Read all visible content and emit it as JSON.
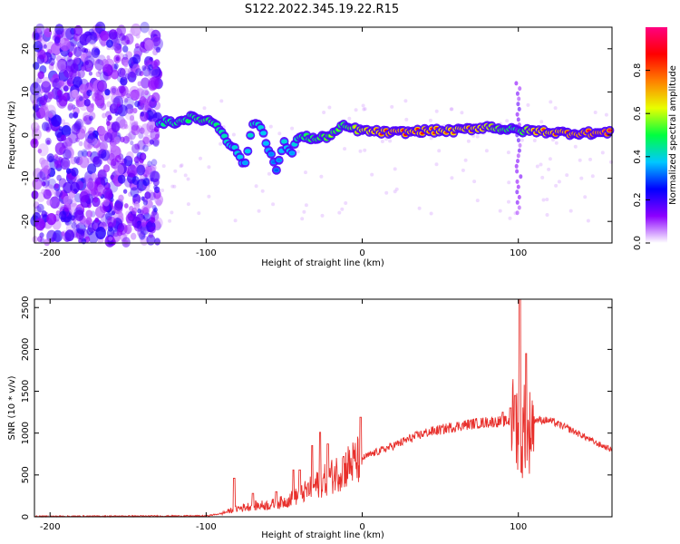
{
  "title": "S122.2022.345.19.22.R15",
  "chart_data": [
    {
      "type": "heatmap",
      "xlabel": "Height of straight line (km)",
      "ylabel": "Frequency (Hz)",
      "xlim": [
        -210,
        160
      ],
      "ylim": [
        -25,
        25
      ],
      "xticks": [
        -200,
        -100,
        0,
        100
      ],
      "yticks": [
        -20,
        -10,
        0,
        10,
        20
      ],
      "colorbar": {
        "label": "Normalized spectral amplitude",
        "range": [
          0,
          1
        ],
        "ticks": [
          "0.0",
          "0.2",
          "0.4",
          "0.6",
          "0.8"
        ],
        "colormap": [
          "#ffffff",
          "#8c00ff",
          "#0000ff",
          "#00c8ff",
          "#00ff40",
          "#e8ff00",
          "#ff8000",
          "#ff0000",
          "#ff0080"
        ]
      },
      "ridge": [
        {
          "x": -130,
          "y": 3,
          "a": 0.45
        },
        {
          "x": -120,
          "y": 3,
          "a": 0.5
        },
        {
          "x": -110,
          "y": 4,
          "a": 0.5
        },
        {
          "x": -100,
          "y": 3.5,
          "a": 0.55
        },
        {
          "x": -95,
          "y": 3,
          "a": 0.5
        },
        {
          "x": -90,
          "y": 1,
          "a": 0.45
        },
        {
          "x": -85,
          "y": -2,
          "a": 0.4
        },
        {
          "x": -80,
          "y": -4,
          "a": 0.4
        },
        {
          "x": -75,
          "y": -7,
          "a": 0.35
        },
        {
          "x": -70,
          "y": 3,
          "a": 0.45
        },
        {
          "x": -65,
          "y": 2,
          "a": 0.4
        },
        {
          "x": -60,
          "y": -3,
          "a": 0.35
        },
        {
          "x": -55,
          "y": -8,
          "a": 0.3
        },
        {
          "x": -50,
          "y": -2,
          "a": 0.4
        },
        {
          "x": -45,
          "y": -4,
          "a": 0.35
        },
        {
          "x": -40,
          "y": 0,
          "a": 0.5
        },
        {
          "x": -30,
          "y": -1,
          "a": 0.55
        },
        {
          "x": -20,
          "y": 0,
          "a": 0.6
        },
        {
          "x": -12,
          "y": 2,
          "a": 0.55
        },
        {
          "x": 0,
          "y": 1,
          "a": 0.75
        },
        {
          "x": 20,
          "y": 0.5,
          "a": 0.9
        },
        {
          "x": 40,
          "y": 1,
          "a": 0.85
        },
        {
          "x": 60,
          "y": 1,
          "a": 0.8
        },
        {
          "x": 70,
          "y": 1.5,
          "a": 0.85
        },
        {
          "x": 80,
          "y": 2,
          "a": 0.75
        },
        {
          "x": 90,
          "y": 1.5,
          "a": 0.6
        },
        {
          "x": 100,
          "y": 1,
          "a": 0.5
        },
        {
          "x": 110,
          "y": 1,
          "a": 0.8
        },
        {
          "x": 130,
          "y": 0.5,
          "a": 0.9
        },
        {
          "x": 160,
          "y": 0.5,
          "a": 0.95
        }
      ]
    },
    {
      "type": "line",
      "xlabel": "Height of straight line (km)",
      "ylabel": "SNR (10 * v/v)",
      "xlim": [
        -210,
        160
      ],
      "ylim": [
        0,
        2600
      ],
      "xticks": [
        -200,
        -100,
        0,
        100
      ],
      "yticks": [
        0,
        500,
        1000,
        1500,
        2000,
        2500
      ],
      "color": "#e8302c",
      "envelope": {
        "x": [
          -210,
          -100,
          -90,
          -80,
          -70,
          -60,
          -50,
          -40,
          -30,
          -20,
          -10,
          0,
          10,
          20,
          30,
          40,
          50,
          60,
          70,
          80,
          90,
          95,
          100,
          102,
          104,
          106,
          108,
          110,
          120,
          130,
          140,
          150,
          160
        ],
        "y": [
          5,
          10,
          40,
          100,
          130,
          140,
          180,
          260,
          370,
          480,
          600,
          700,
          780,
          850,
          930,
          1000,
          1040,
          1080,
          1110,
          1130,
          1140,
          1140,
          1100,
          700,
          1200,
          900,
          1100,
          1160,
          1150,
          1070,
          980,
          880,
          800
        ]
      },
      "spikes": [
        {
          "x": -82,
          "y": 460
        },
        {
          "x": -70,
          "y": 280
        },
        {
          "x": -55,
          "y": 300
        },
        {
          "x": -44,
          "y": 560
        },
        {
          "x": -40,
          "y": 560
        },
        {
          "x": -32,
          "y": 850
        },
        {
          "x": -27,
          "y": 1010
        },
        {
          "x": -22,
          "y": 870
        },
        {
          "x": -12,
          "y": 720
        },
        {
          "x": -1,
          "y": 1190
        },
        {
          "x": 90,
          "y": 1250
        },
        {
          "x": 95,
          "y": 1300
        },
        {
          "x": 98,
          "y": 1450
        },
        {
          "x": 101,
          "y": 2600
        },
        {
          "x": 105,
          "y": 1950
        }
      ]
    }
  ]
}
